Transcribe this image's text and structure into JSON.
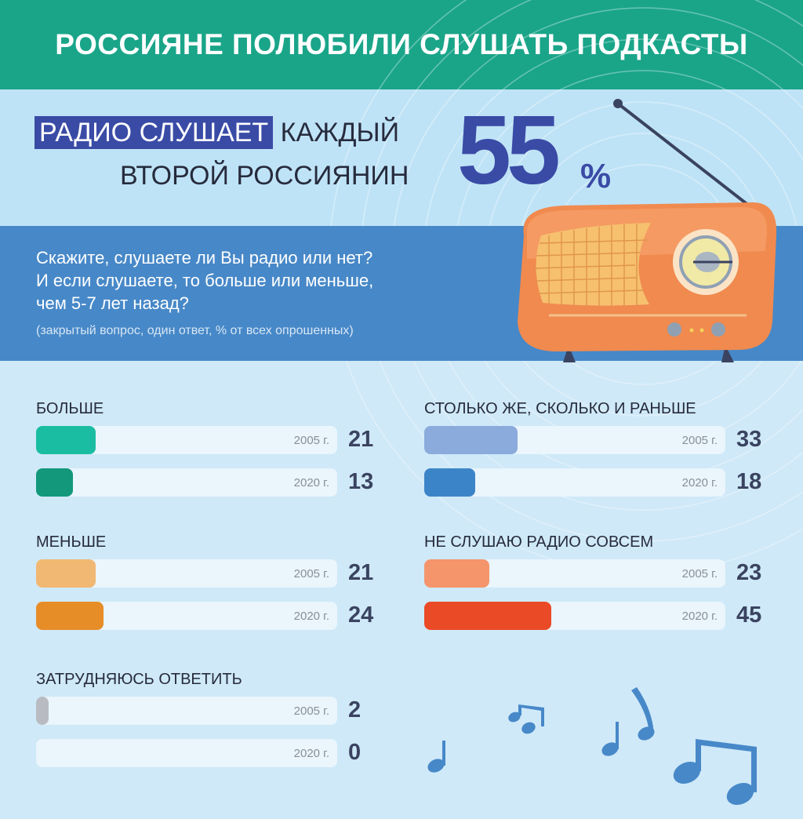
{
  "header": {
    "title": "РОССИЯНЕ ПОЛЮБИЛИ СЛУШАТЬ ПОДКАСТЫ"
  },
  "headline": {
    "highlight": "РАДИО СЛУШАЕТ",
    "rest_line1": " КАЖДЫЙ",
    "line2": "ВТОРОЙ РОССИЯНИН",
    "big_number": "55",
    "big_unit": "%"
  },
  "question": {
    "text_line1": "Скажите, слушаете ли Вы радио или нет?",
    "text_line2": "И если слушаете, то больше или меньше,",
    "text_line3": "чем 5-7 лет назад?",
    "note": "(закрытый вопрос, один ответ, % от всех опрошенных)"
  },
  "colors": {
    "header": "#1aa589",
    "accent": "#3a4ba6",
    "question_band": "#4788c8",
    "radio_body": "#f08a4f"
  },
  "icons": [
    "radio-icon",
    "music-note-icon",
    "sound-wave-icon"
  ],
  "chart_data": {
    "type": "bar",
    "orientation": "horizontal",
    "xlim": [
      0,
      100
    ],
    "series": [
      {
        "name": "2005 г.",
        "values": [
          21,
          33,
          21,
          23,
          2
        ]
      },
      {
        "name": "2020 г.",
        "values": [
          13,
          18,
          24,
          45,
          0
        ]
      }
    ],
    "groups": [
      {
        "label": "БОЛЬШЕ",
        "rows": [
          {
            "year": "2005 г.",
            "value": 21,
            "color": "#1bbda2"
          },
          {
            "year": "2020 г.",
            "value": 13,
            "color": "#13987c"
          }
        ]
      },
      {
        "label": "СТОЛЬКО ЖЕ, СКОЛЬКО И РАНЬШЕ",
        "rows": [
          {
            "year": "2005 г.",
            "value": 33,
            "color": "#8aabdc"
          },
          {
            "year": "2020 г.",
            "value": 18,
            "color": "#3c84c8"
          }
        ]
      },
      {
        "label": "МЕНЬШЕ",
        "rows": [
          {
            "year": "2005 г.",
            "value": 21,
            "color": "#f1b873"
          },
          {
            "year": "2020 г.",
            "value": 24,
            "color": "#e78d28"
          }
        ]
      },
      {
        "label": "НЕ СЛУШАЮ РАДИО СОВСЕМ",
        "rows": [
          {
            "year": "2005 г.",
            "value": 23,
            "color": "#f4956b"
          },
          {
            "year": "2020 г.",
            "value": 45,
            "color": "#ea4a26"
          }
        ]
      },
      {
        "label": "ЗАТРУДНЯЮСЬ ОТВЕТИТЬ",
        "rows": [
          {
            "year": "2005 г.",
            "value": 2,
            "color": "#b8bcc2"
          },
          {
            "year": "2020 г.",
            "value": 0,
            "color": "#b8bcc2"
          }
        ]
      }
    ]
  }
}
